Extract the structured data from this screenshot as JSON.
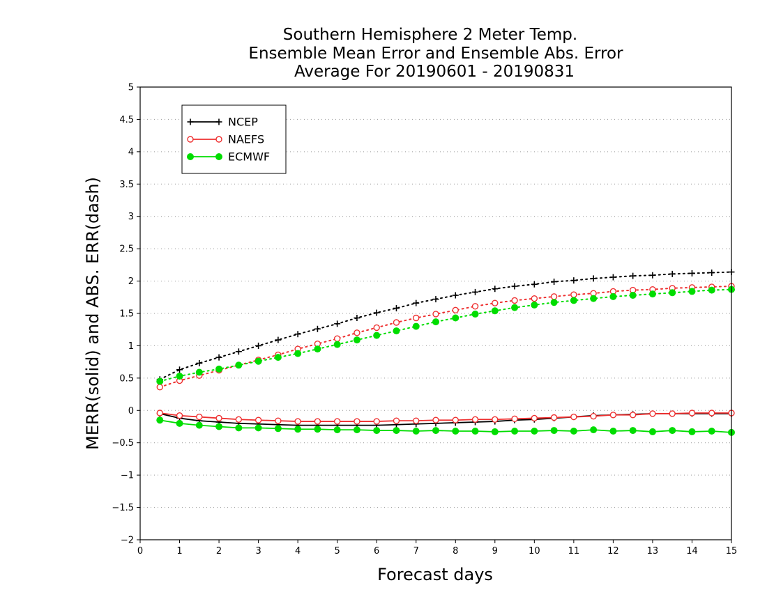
{
  "chart_data": {
    "type": "line",
    "title_lines": [
      "Southern Hemisphere 2 Meter Temp.",
      "Ensemble Mean Error and Ensemble Abs. Error",
      "Average For 20190601 - 20190831"
    ],
    "xlabel": "Forecast days",
    "ylabel": "MERR(solid) and ABS. ERR(dash)",
    "xlim": [
      0,
      15
    ],
    "ylim": [
      -2,
      5
    ],
    "x_ticks": [
      "0",
      "1",
      "2",
      "3",
      "4",
      "5",
      "6",
      "7",
      "8",
      "9",
      "10",
      "11",
      "12",
      "13",
      "14",
      "15"
    ],
    "y_ticks": [
      "-2",
      "-1.5",
      "-1",
      "-0.5",
      "0",
      "0.5",
      "1",
      "1.5",
      "2",
      "2.5",
      "3",
      "3.5",
      "4",
      "4.5",
      "5"
    ],
    "grid": "dotted horizontal",
    "legend_position": "top-left",
    "x": [
      0.5,
      1,
      1.5,
      2,
      2.5,
      3,
      3.5,
      4,
      4.5,
      5,
      5.5,
      6,
      6.5,
      7,
      7.5,
      8,
      8.5,
      9,
      9.5,
      10,
      10.5,
      11,
      11.5,
      12,
      12.5,
      13,
      13.5,
      14,
      14.5,
      15
    ],
    "series": [
      {
        "name": "NCEP",
        "color": "#000000",
        "marker": "plus",
        "merr_solid": [
          -0.05,
          -0.12,
          -0.16,
          -0.18,
          -0.2,
          -0.21,
          -0.22,
          -0.23,
          -0.23,
          -0.23,
          -0.23,
          -0.23,
          -0.22,
          -0.21,
          -0.2,
          -0.19,
          -0.18,
          -0.17,
          -0.15,
          -0.14,
          -0.12,
          -0.1,
          -0.08,
          -0.07,
          -0.06,
          -0.05,
          -0.05,
          -0.05,
          -0.05,
          -0.05
        ],
        "abs_err_dash": [
          0.48,
          0.63,
          0.73,
          0.82,
          0.91,
          1.0,
          1.09,
          1.18,
          1.26,
          1.34,
          1.43,
          1.51,
          1.58,
          1.66,
          1.72,
          1.78,
          1.83,
          1.88,
          1.92,
          1.95,
          1.99,
          2.01,
          2.04,
          2.06,
          2.08,
          2.09,
          2.11,
          2.12,
          2.13,
          2.14
        ]
      },
      {
        "name": "NAEFS",
        "color": "#ee3030",
        "marker": "open-circle",
        "merr_solid": [
          -0.04,
          -0.08,
          -0.1,
          -0.12,
          -0.14,
          -0.15,
          -0.16,
          -0.17,
          -0.17,
          -0.17,
          -0.17,
          -0.17,
          -0.16,
          -0.16,
          -0.15,
          -0.15,
          -0.14,
          -0.14,
          -0.13,
          -0.12,
          -0.11,
          -0.1,
          -0.09,
          -0.07,
          -0.07,
          -0.05,
          -0.05,
          -0.04,
          -0.04,
          -0.04
        ],
        "abs_err_dash": [
          0.36,
          0.46,
          0.54,
          0.62,
          0.7,
          0.78,
          0.86,
          0.95,
          1.03,
          1.11,
          1.2,
          1.28,
          1.36,
          1.43,
          1.49,
          1.55,
          1.61,
          1.66,
          1.7,
          1.73,
          1.76,
          1.79,
          1.81,
          1.84,
          1.86,
          1.87,
          1.89,
          1.9,
          1.91,
          1.92
        ]
      },
      {
        "name": "ECMWF",
        "color": "#00dd00",
        "marker": "filled-circle",
        "merr_solid": [
          -0.15,
          -0.2,
          -0.23,
          -0.25,
          -0.27,
          -0.27,
          -0.28,
          -0.29,
          -0.29,
          -0.3,
          -0.3,
          -0.31,
          -0.31,
          -0.32,
          -0.31,
          -0.32,
          -0.32,
          -0.33,
          -0.32,
          -0.32,
          -0.31,
          -0.32,
          -0.3,
          -0.32,
          -0.31,
          -0.33,
          -0.31,
          -0.33,
          -0.32,
          -0.34
        ],
        "abs_err_dash": [
          0.45,
          0.53,
          0.59,
          0.64,
          0.7,
          0.76,
          0.82,
          0.88,
          0.95,
          1.02,
          1.09,
          1.16,
          1.23,
          1.3,
          1.37,
          1.43,
          1.49,
          1.54,
          1.59,
          1.63,
          1.67,
          1.7,
          1.73,
          1.76,
          1.78,
          1.8,
          1.82,
          1.84,
          1.86,
          1.87
        ]
      }
    ]
  }
}
